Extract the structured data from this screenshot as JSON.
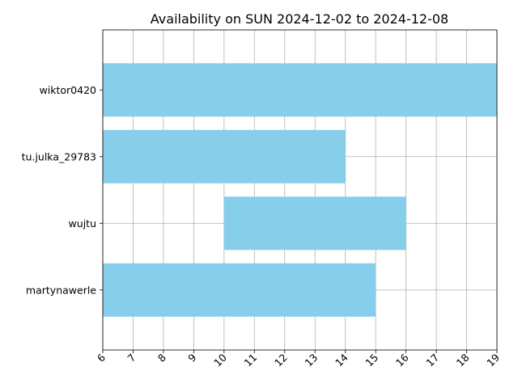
{
  "chart_data": {
    "type": "bar",
    "orientation": "horizontal",
    "title": "Availability on SUN 2024-12-02 to 2024-12-08",
    "xlabel": "",
    "ylabel": "",
    "xlim": [
      6,
      19
    ],
    "xticks": [
      6,
      7,
      8,
      9,
      10,
      11,
      12,
      13,
      14,
      15,
      16,
      17,
      18,
      19
    ],
    "xtick_rotation": 45,
    "grid": true,
    "bar_color": "#87CEEB",
    "grid_color": "#b0b0b0",
    "categories": [
      "martynawerle",
      "wujtu",
      "tu.julka_29783",
      "wiktor0420"
    ],
    "bars": [
      {
        "name": "martynawerle",
        "start": 6,
        "end": 15
      },
      {
        "name": "wujtu",
        "start": 10,
        "end": 16
      },
      {
        "name": "tu.julka_29783",
        "start": 6,
        "end": 14
      },
      {
        "name": "wiktor0420",
        "start": 6,
        "end": 19
      }
    ]
  }
}
